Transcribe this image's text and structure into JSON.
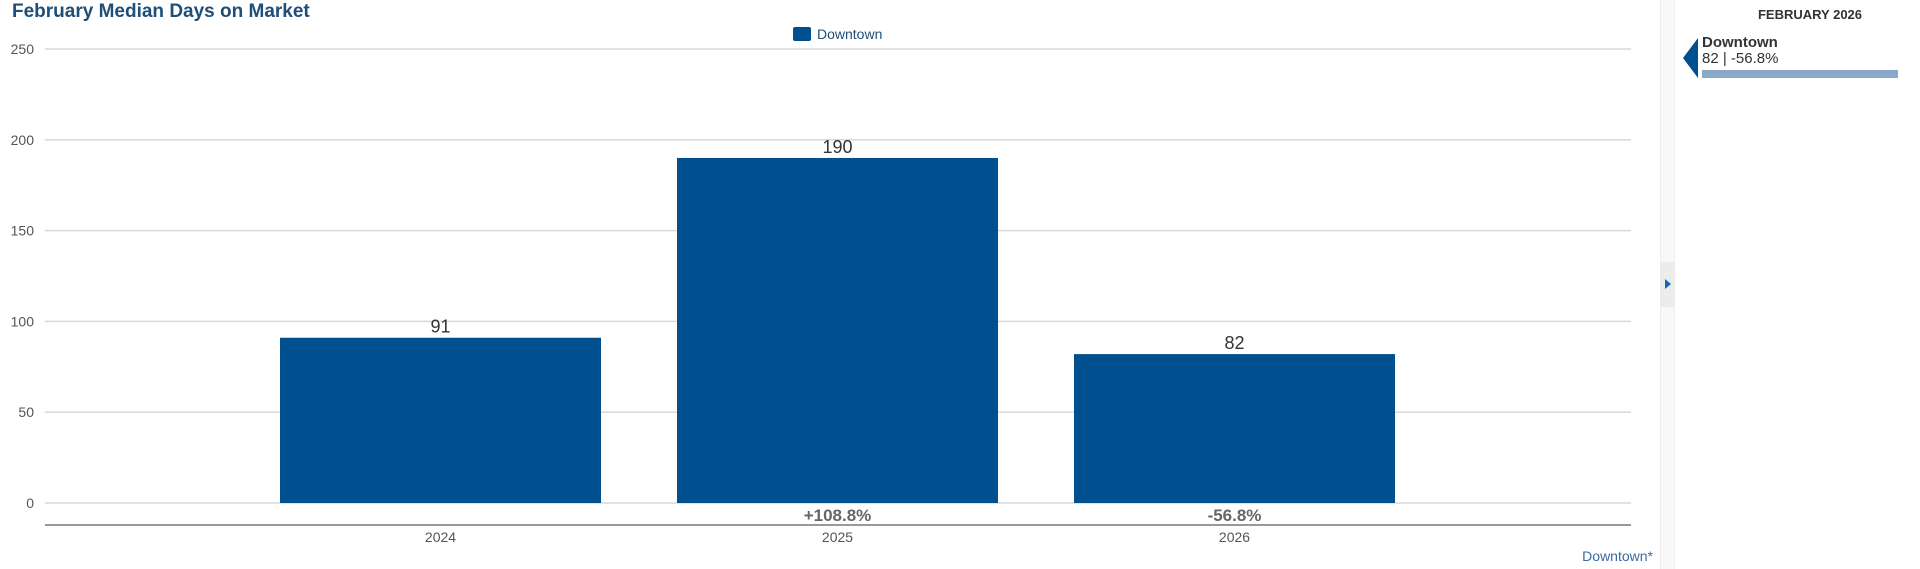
{
  "chart_data": {
    "type": "bar",
    "title": "February Median Days on Market",
    "categories": [
      "2024",
      "2025",
      "2026"
    ],
    "series": [
      {
        "name": "Downtown",
        "values": [
          91,
          190,
          82
        ],
        "color": "#004f8f"
      }
    ],
    "change_labels": [
      "",
      "+108.8%",
      "-56.8%"
    ],
    "yticks": [
      0,
      50,
      100,
      150,
      200,
      250
    ],
    "ylim": [
      0,
      250
    ],
    "xlabel": "",
    "ylabel": "",
    "grid": true,
    "legend": "top-center",
    "footnote": "Downtown*"
  },
  "sidebar": {
    "heading": "FEBRUARY 2026",
    "item_name": "Downtown",
    "item_value": "82 | -56.8%"
  }
}
